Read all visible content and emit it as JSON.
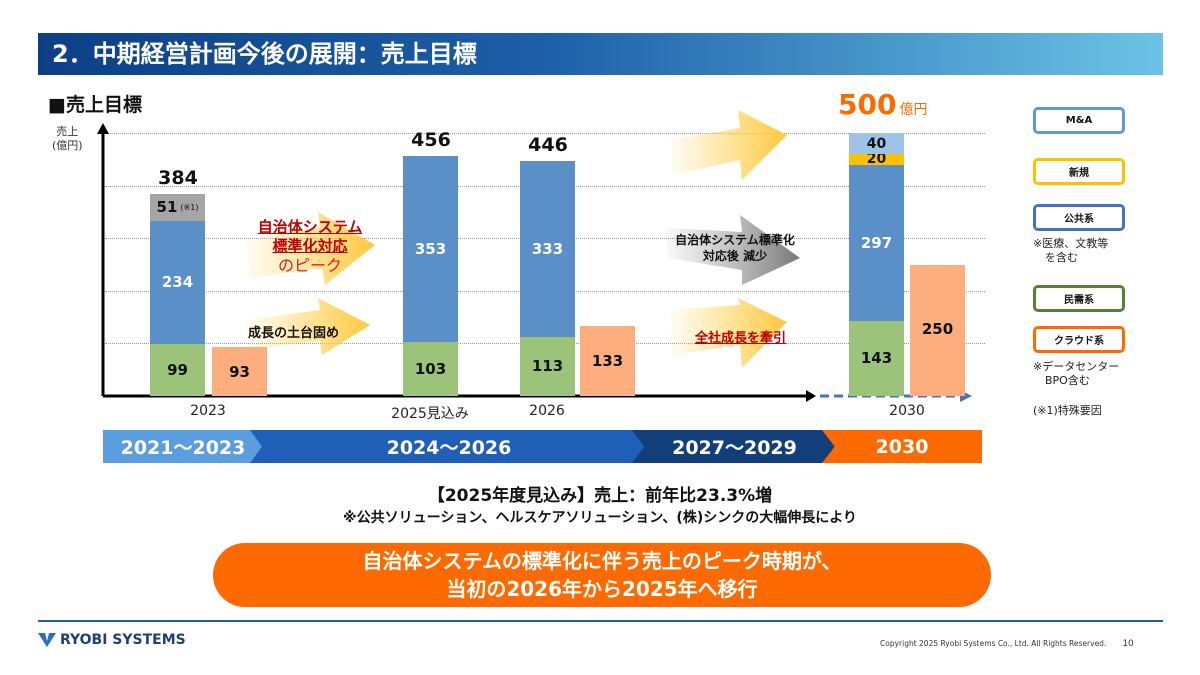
{
  "title": "2．中期経営計画今後の展開：売上目標",
  "subtitle": "■売上目標",
  "y_unit": [
    "売上",
    "(億円)"
  ],
  "colors": {
    "ma": "#9dc3e6",
    "new": "#ffc000",
    "public": "#5b8fc7",
    "private": "#9bc47a",
    "cloud": "#fdae7e",
    "special": "#a5a5a5",
    "orange": "#ff6a00"
  },
  "chart_data": {
    "type": "bar",
    "categories": [
      "2023",
      "2025見込み",
      "2026",
      "2030"
    ],
    "unit": "億円",
    "ylim": [
      0,
      500
    ],
    "grid": true,
    "stacked_series": [
      {
        "name": "民需系",
        "values": [
          99,
          103,
          113,
          143
        ]
      },
      {
        "name": "公共系",
        "values": [
          234,
          353,
          333,
          297
        ]
      },
      {
        "name": "特殊要因",
        "values": [
          51,
          0,
          0,
          0
        ],
        "note": "(※1)"
      },
      {
        "name": "新規",
        "values": [
          0,
          0,
          0,
          20
        ]
      },
      {
        "name": "M&A",
        "values": [
          0,
          0,
          0,
          40
        ]
      }
    ],
    "side_series": {
      "name": "クラウド系",
      "values": [
        93,
        null,
        133,
        250
      ]
    },
    "totals": [
      "384",
      "456",
      "446",
      "500"
    ],
    "total_unit_2030": "億円",
    "annotations": {
      "peak": [
        "自治体システム",
        "標準化対応",
        "のピーク"
      ],
      "base": "成長の土台固め",
      "decline": [
        "自治体システム標準化",
        "対応後 減少"
      ],
      "lead": "全社成長を牽引"
    }
  },
  "legend": [
    {
      "label": "M&A"
    },
    {
      "label": "新規"
    },
    {
      "label": "公共系",
      "note": [
        "※医療、文教等",
        "を含む"
      ]
    },
    {
      "label": "民需系"
    },
    {
      "label": "クラウド系",
      "note": [
        "※データセンター",
        "BPO含む"
      ]
    }
  ],
  "footnote": "(※1)特殊要因",
  "phases": [
    "2021～2023",
    "2024～2026",
    "2027～2029",
    "2030"
  ],
  "message1": "【2025年度見込み】売上：前年比23.3%増",
  "message2": "※公共ソリューション、ヘルスケアソリューション、(株)シンクの大幅伸長により",
  "pill": [
    "自治体システムの標準化に伴う売上のピーク時期が、",
    "当初の2026年から2025年へ移行"
  ],
  "logo": "RYOBI SYSTEMS",
  "copyright": "Copyright 2025 Ryobi Systems Co., Ltd. All Rights Reserved.",
  "page": "10"
}
